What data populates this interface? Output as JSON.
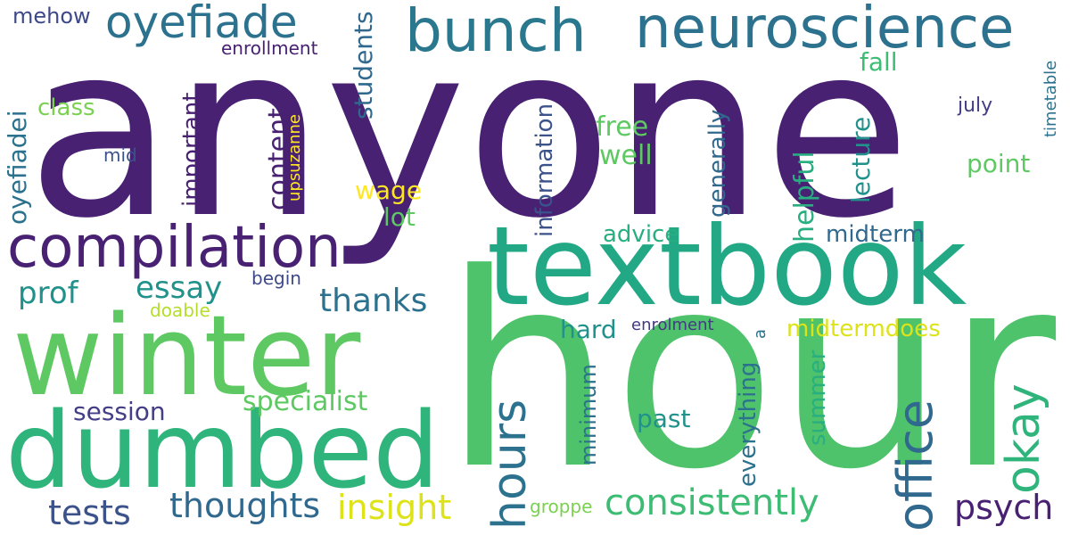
{
  "palette": {
    "dark_purple": "#482173",
    "indigo": "#433e85",
    "blue": "#2c728e",
    "teal": "#21918c",
    "green": "#28ae80",
    "light_green": "#5ec962",
    "lime": "#addc30",
    "yellow": "#fde725"
  },
  "words": [
    {
      "text": "anyone",
      "color": "#482173"
    },
    {
      "text": "hour",
      "color": "#4fc36b"
    },
    {
      "text": "textbook",
      "color": "#22a884"
    },
    {
      "text": "winter",
      "color": "#5ec962"
    },
    {
      "text": "dumbed",
      "color": "#2fb47c"
    },
    {
      "text": "compilation",
      "color": "#482173"
    },
    {
      "text": "neuroscience",
      "color": "#2c728e"
    },
    {
      "text": "bunch",
      "color": "#2a788e"
    },
    {
      "text": "oyefiade",
      "color": "#2c728e"
    },
    {
      "text": "office",
      "color": "#31688e"
    },
    {
      "text": "hours",
      "color": "#2c728e"
    },
    {
      "text": "okay",
      "color": "#2fb47c"
    },
    {
      "text": "consistently",
      "color": "#3dbc74"
    },
    {
      "text": "thoughts",
      "color": "#31688e"
    },
    {
      "text": "insight",
      "color": "#dde318"
    },
    {
      "text": "tests",
      "color": "#3b528b"
    },
    {
      "text": "psych",
      "color": "#482173"
    },
    {
      "text": "essay",
      "color": "#21918c"
    },
    {
      "text": "prof",
      "color": "#21918c"
    },
    {
      "text": "thanks",
      "color": "#2c728e"
    },
    {
      "text": "specialist",
      "color": "#5ec962"
    },
    {
      "text": "session",
      "color": "#433e85"
    },
    {
      "text": "oyefiadei",
      "color": "#2c728e"
    },
    {
      "text": "important",
      "color": "#482173"
    },
    {
      "text": "content",
      "color": "#482173"
    },
    {
      "text": "students",
      "color": "#31688e"
    },
    {
      "text": "information",
      "color": "#3b528b"
    },
    {
      "text": "generally",
      "color": "#31688e"
    },
    {
      "text": "helpful",
      "color": "#28ae80"
    },
    {
      "text": "lecture",
      "color": "#21918c"
    },
    {
      "text": "everything",
      "color": "#2c728e"
    },
    {
      "text": "summer",
      "color": "#28ae80"
    },
    {
      "text": "minimum",
      "color": "#2c728e"
    },
    {
      "text": "midtermdoes",
      "color": "#dde318"
    },
    {
      "text": "midterm",
      "color": "#31688e"
    },
    {
      "text": "advice",
      "color": "#28ae80"
    },
    {
      "text": "free",
      "color": "#5ec962"
    },
    {
      "text": "well",
      "color": "#5ec962"
    },
    {
      "text": "wage",
      "color": "#fde725"
    },
    {
      "text": "lot",
      "color": "#5ec962"
    },
    {
      "text": "hard",
      "color": "#21918c"
    },
    {
      "text": "past",
      "color": "#21918c"
    },
    {
      "text": "point",
      "color": "#5ec962"
    },
    {
      "text": "fall",
      "color": "#3dbc74"
    },
    {
      "text": "class",
      "color": "#7ad151"
    },
    {
      "text": "mehow",
      "color": "#3e4989"
    },
    {
      "text": "enrollment",
      "color": "#482173"
    },
    {
      "text": "enrolment",
      "color": "#443983"
    },
    {
      "text": "mid",
      "color": "#3b528b"
    },
    {
      "text": "upsuzanne",
      "color": "#fde725"
    },
    {
      "text": "begin",
      "color": "#3e4989"
    },
    {
      "text": "doable",
      "color": "#b5de2b"
    },
    {
      "text": "july",
      "color": "#433e85"
    },
    {
      "text": "timetable",
      "color": "#2c728e"
    },
    {
      "text": "groppe",
      "color": "#7ad151"
    },
    {
      "text": "a",
      "color": "#2c728e"
    }
  ]
}
